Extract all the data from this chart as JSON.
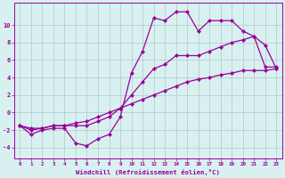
{
  "x": [
    0,
    1,
    2,
    3,
    4,
    5,
    6,
    7,
    8,
    9,
    10,
    11,
    12,
    13,
    14,
    15,
    16,
    17,
    18,
    19,
    20,
    21,
    22,
    23
  ],
  "line1": [
    -1.5,
    -2.5,
    -2.0,
    -1.8,
    -1.8,
    -3.5,
    -3.8,
    -3.0,
    -2.5,
    -0.5,
    4.5,
    7.0,
    10.8,
    10.5,
    11.5,
    11.5,
    9.3,
    10.5,
    10.5,
    10.5,
    9.3,
    8.7,
    7.7,
    5.0
  ],
  "line2": [
    -1.5,
    -2.0,
    -1.8,
    -1.5,
    -1.5,
    -1.5,
    -1.5,
    -1.0,
    -0.5,
    0.5,
    2.0,
    3.5,
    5.0,
    5.5,
    6.5,
    6.5,
    6.5,
    7.0,
    7.5,
    8.0,
    8.3,
    8.7,
    5.2,
    5.2
  ],
  "line3": [
    -1.5,
    -1.8,
    -1.8,
    -1.5,
    -1.5,
    -1.2,
    -1.0,
    -0.5,
    0.0,
    0.5,
    1.0,
    1.5,
    2.0,
    2.5,
    3.0,
    3.5,
    3.8,
    4.0,
    4.3,
    4.5,
    4.8,
    4.8,
    4.8,
    5.0
  ],
  "color": "#990099",
  "bg_color": "#d8f0f0",
  "grid_color": "#b0c8c8",
  "xlabel": "Windchill (Refroidissement éolien,°C)",
  "yticks": [
    -4,
    -2,
    0,
    2,
    4,
    6,
    8,
    10
  ],
  "xticks": [
    0,
    1,
    2,
    3,
    4,
    5,
    6,
    7,
    8,
    9,
    10,
    11,
    12,
    13,
    14,
    15,
    16,
    17,
    18,
    19,
    20,
    21,
    22,
    23
  ],
  "ylim": [
    -5.2,
    12.5
  ],
  "xlim": [
    -0.5,
    23.5
  ],
  "linewidth": 0.9,
  "markersize": 2.2
}
